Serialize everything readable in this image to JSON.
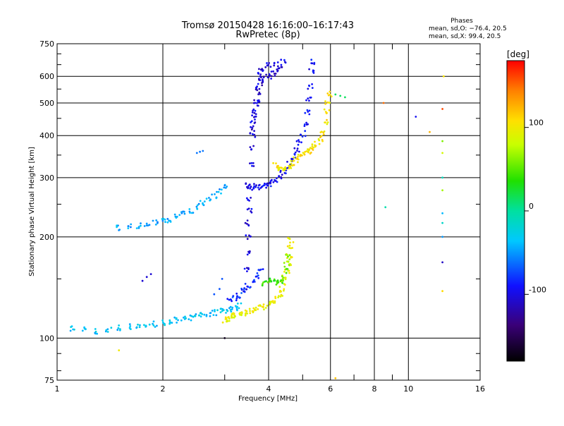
{
  "chart_data": {
    "type": "scatter",
    "title": "Tromsø 20150428 16:16:00–16:17:43",
    "subtitle": "RwPretec (8p)",
    "phases_header": "Phases",
    "phases_line_o": "mean, sd,O: −76.4, 20.5",
    "phases_line_x": "mean, sd,X:  99.4, 20.5",
    "xlabel": "Frequency [MHz]",
    "ylabel": "Stationary phase Virtual Height [km]",
    "x_scale": "log",
    "y_scale": "log",
    "xlim": [
      1,
      16
    ],
    "ylim": [
      75,
      750
    ],
    "grid": true,
    "x_ticks": [
      1,
      2,
      4,
      6,
      8,
      10,
      16
    ],
    "x_tick_labels": [
      "1",
      "2",
      "4",
      "6",
      "8",
      "10",
      "16"
    ],
    "x_minor_ticks": [
      3,
      5,
      7,
      9
    ],
    "y_ticks": [
      75,
      100,
      200,
      300,
      400,
      500,
      600,
      750
    ],
    "y_tick_labels": [
      "75",
      "100",
      "200",
      "300",
      "400",
      "500",
      "600",
      "750"
    ],
    "colorbar": {
      "label": "[deg]",
      "range": [
        -180,
        180
      ],
      "ticks": [
        100,
        0,
        -100
      ],
      "tick_labels": [
        "100",
        "0",
        "-100"
      ]
    },
    "series": [
      {
        "phase": 95,
        "points": [
          [
            3.0,
            113
          ],
          [
            3.05,
            114
          ],
          [
            3.1,
            115
          ],
          [
            3.15,
            116
          ],
          [
            3.2,
            117
          ],
          [
            3.3,
            118
          ],
          [
            3.4,
            119
          ],
          [
            3.5,
            120
          ],
          [
            3.6,
            121
          ],
          [
            3.7,
            122
          ],
          [
            3.8,
            123
          ],
          [
            3.9,
            124
          ],
          [
            4.0,
            126
          ],
          [
            4.1,
            128
          ],
          [
            4.2,
            131
          ],
          [
            4.3,
            135
          ],
          [
            4.35,
            140
          ],
          [
            4.4,
            146
          ],
          [
            4.45,
            152
          ],
          [
            4.5,
            158
          ],
          [
            4.55,
            166
          ],
          [
            4.58,
            175
          ],
          [
            4.6,
            185
          ],
          [
            4.62,
            195
          ]
        ]
      },
      {
        "phase": -95,
        "points": [
          [
            3.5,
            285
          ],
          [
            3.6,
            282
          ],
          [
            3.7,
            280
          ],
          [
            3.8,
            281
          ],
          [
            3.9,
            284
          ],
          [
            4.0,
            288
          ],
          [
            4.1,
            292
          ],
          [
            4.2,
            296
          ],
          [
            4.3,
            302
          ],
          [
            4.4,
            310
          ],
          [
            4.5,
            320
          ],
          [
            4.6,
            332
          ],
          [
            4.7,
            346
          ],
          [
            4.8,
            362
          ],
          [
            4.9,
            382
          ],
          [
            5.0,
            405
          ],
          [
            5.1,
            435
          ],
          [
            5.15,
            470
          ],
          [
            5.2,
            510
          ],
          [
            5.25,
            560
          ],
          [
            5.3,
            620
          ],
          [
            5.35,
            660
          ]
        ]
      },
      {
        "phase": 105,
        "points": [
          [
            4.2,
            325
          ],
          [
            4.3,
            320
          ],
          [
            4.4,
            318
          ],
          [
            4.5,
            320
          ],
          [
            4.6,
            325
          ],
          [
            4.7,
            330
          ],
          [
            4.8,
            338
          ],
          [
            4.9,
            345
          ],
          [
            5.0,
            350
          ],
          [
            5.1,
            355
          ],
          [
            5.2,
            360
          ],
          [
            5.3,
            365
          ],
          [
            5.4,
            372
          ],
          [
            5.5,
            380
          ],
          [
            5.6,
            392
          ],
          [
            5.7,
            410
          ],
          [
            5.8,
            440
          ],
          [
            5.85,
            470
          ],
          [
            5.9,
            500
          ],
          [
            5.95,
            530
          ]
        ]
      },
      {
        "phase": -100,
        "points": [
          [
            3.45,
            140
          ],
          [
            3.47,
            160
          ],
          [
            3.48,
            180
          ],
          [
            3.5,
            200
          ],
          [
            3.5,
            220
          ],
          [
            3.52,
            240
          ],
          [
            3.52,
            260
          ],
          [
            3.55,
            280
          ],
          [
            3.58,
            330
          ],
          [
            3.6,
            370
          ],
          [
            3.6,
            400
          ],
          [
            3.62,
            440
          ],
          [
            3.65,
            470
          ],
          [
            3.7,
            500
          ],
          [
            3.72,
            560
          ],
          [
            3.75,
            600
          ],
          [
            3.8,
            620
          ],
          [
            3.9,
            635
          ],
          [
            4.0,
            645
          ],
          [
            4.2,
            655
          ],
          [
            4.4,
            660
          ]
        ]
      },
      {
        "phase": -35,
        "points": [
          [
            1.1,
            107
          ],
          [
            1.2,
            106
          ],
          [
            1.3,
            105
          ],
          [
            1.4,
            106
          ],
          [
            1.5,
            107
          ],
          [
            1.6,
            108
          ],
          [
            1.7,
            109
          ],
          [
            1.8,
            110
          ],
          [
            1.9,
            110
          ],
          [
            2.0,
            111
          ],
          [
            2.1,
            112
          ],
          [
            2.2,
            113
          ],
          [
            2.3,
            114
          ],
          [
            2.4,
            115
          ],
          [
            2.5,
            116
          ],
          [
            2.6,
            117
          ],
          [
            2.7,
            118
          ],
          [
            2.8,
            119
          ],
          [
            2.9,
            120
          ],
          [
            3.0,
            121
          ],
          [
            3.1,
            122
          ],
          [
            3.2,
            123
          ],
          [
            3.3,
            125
          ]
        ]
      },
      {
        "phase": -45,
        "points": [
          [
            1.5,
            212
          ],
          [
            1.6,
            214
          ],
          [
            1.7,
            216
          ],
          [
            1.8,
            218
          ],
          [
            1.9,
            220
          ],
          [
            2.0,
            222
          ],
          [
            2.1,
            225
          ],
          [
            2.2,
            230
          ],
          [
            2.3,
            235
          ],
          [
            2.4,
            240
          ],
          [
            2.5,
            246
          ],
          [
            2.6,
            252
          ],
          [
            2.7,
            258
          ],
          [
            2.8,
            265
          ],
          [
            2.9,
            272
          ],
          [
            3.0,
            280
          ]
        ]
      },
      {
        "phase": -80,
        "points": [
          [
            3.1,
            130
          ],
          [
            3.2,
            132
          ],
          [
            3.3,
            134
          ],
          [
            3.4,
            138
          ],
          [
            3.5,
            143
          ],
          [
            3.6,
            148
          ],
          [
            3.7,
            153
          ],
          [
            3.8,
            158
          ]
        ]
      },
      {
        "phase": 40,
        "points": [
          [
            3.9,
            145
          ],
          [
            4.0,
            148
          ],
          [
            4.1,
            150
          ],
          [
            4.2,
            147
          ],
          [
            4.3,
            146
          ]
        ]
      },
      {
        "phase": -110,
        "points": [
          [
            3.6,
            420
          ],
          [
            3.65,
            460
          ],
          [
            3.7,
            500
          ],
          [
            3.75,
            540
          ],
          [
            3.8,
            575
          ],
          [
            3.9,
            590
          ],
          [
            4.0,
            600
          ],
          [
            4.1,
            610
          ],
          [
            4.2,
            622
          ],
          [
            4.3,
            635
          ]
        ]
      },
      {
        "phase": 60,
        "points": [
          [
            4.4,
            150
          ],
          [
            4.45,
            158
          ],
          [
            4.5,
            166
          ],
          [
            4.55,
            174
          ]
        ]
      },
      {
        "phase": -60,
        "points": [
          [
            2.5,
            355
          ],
          [
            2.55,
            358
          ],
          [
            2.6,
            360
          ]
        ]
      },
      {
        "phase": -105,
        "points": [
          [
            1.75,
            148
          ],
          [
            1.8,
            152
          ],
          [
            1.85,
            155
          ]
        ]
      },
      {
        "phase": -70,
        "points": [
          [
            2.8,
            135
          ],
          [
            2.9,
            140
          ],
          [
            2.95,
            150
          ]
        ]
      },
      {
        "phase": 15,
        "points": [
          [
            6.2,
            530
          ],
          [
            6.4,
            525
          ],
          [
            6.6,
            520
          ]
        ]
      },
      {
        "phase": 150,
        "points": [
          [
            8.5,
            500
          ]
        ]
      },
      {
        "phase": -95,
        "points": [
          [
            10.5,
            455
          ]
        ]
      },
      {
        "phase": 125,
        "points": [
          [
            11.5,
            410
          ]
        ]
      },
      {
        "phase": 160,
        "points": [
          [
            12.5,
            480
          ]
        ]
      },
      {
        "phase": 60,
        "points": [
          [
            12.5,
            385
          ]
        ]
      },
      {
        "phase": 85,
        "points": [
          [
            12.5,
            355
          ]
        ]
      },
      {
        "phase": -10,
        "points": [
          [
            12.5,
            300
          ]
        ]
      },
      {
        "phase": 70,
        "points": [
          [
            12.5,
            275
          ]
        ]
      },
      {
        "phase": -40,
        "points": [
          [
            12.5,
            235
          ]
        ]
      },
      {
        "phase": -15,
        "points": [
          [
            12.5,
            220
          ]
        ]
      },
      {
        "phase": -50,
        "points": [
          [
            12.5,
            200
          ]
        ]
      },
      {
        "phase": -110,
        "points": [
          [
            12.5,
            168
          ]
        ]
      },
      {
        "phase": 110,
        "points": [
          [
            12.5,
            138
          ]
        ]
      },
      {
        "phase": -5,
        "points": [
          [
            8.6,
            245
          ]
        ]
      },
      {
        "phase": 100,
        "points": [
          [
            1.5,
            92
          ]
        ]
      },
      {
        "phase": -170,
        "points": [
          [
            3.0,
            100
          ]
        ]
      },
      {
        "phase": 120,
        "points": [
          [
            6.2,
            76
          ]
        ]
      },
      {
        "phase": 105,
        "points": [
          [
            12.6,
            600
          ]
        ]
      }
    ]
  }
}
